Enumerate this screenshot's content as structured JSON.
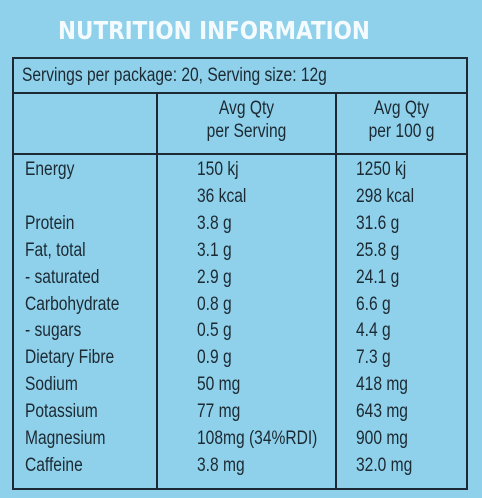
{
  "title": "NUTRITION INFORMATION",
  "servings_line": "Servings per package: 20, Serving size: 12g",
  "headers": {
    "per_serving_l1": "Avg Qty",
    "per_serving_l2": "per Serving",
    "per_100g_l1": "Avg Qty",
    "per_100g_l2": "per 100 g"
  },
  "rows": [
    {
      "name": "Energy",
      "serving": "150 kj",
      "per100": "1250 kj"
    },
    {
      "name": "",
      "serving": "36 kcal",
      "per100": "298 kcal"
    },
    {
      "name": "Protein",
      "serving": "3.8 g",
      "per100": "31.6 g"
    },
    {
      "name": "Fat, total",
      "serving": "3.1 g",
      "per100": "25.8 g"
    },
    {
      "name": "- saturated",
      "serving": "2.9 g",
      "per100": "24.1 g"
    },
    {
      "name": "Carbohydrate",
      "serving": "0.8 g",
      "per100": "6.6 g"
    },
    {
      "name": "- sugars",
      "serving": "0.5 g",
      "per100": "4.4 g"
    },
    {
      "name": "Dietary Fibre",
      "serving": "0.9 g",
      "per100": "7.3 g"
    },
    {
      "name": "Sodium",
      "serving": "50 mg",
      "per100": "418 mg"
    },
    {
      "name": "Potassium",
      "serving": "77 mg",
      "per100": "643 mg"
    },
    {
      "name": "Magnesium",
      "serving": "108mg (34%RDI)",
      "per100": "900 mg"
    },
    {
      "name": "Caffeine",
      "serving": "3.8 mg",
      "per100": "32.0 mg"
    }
  ]
}
